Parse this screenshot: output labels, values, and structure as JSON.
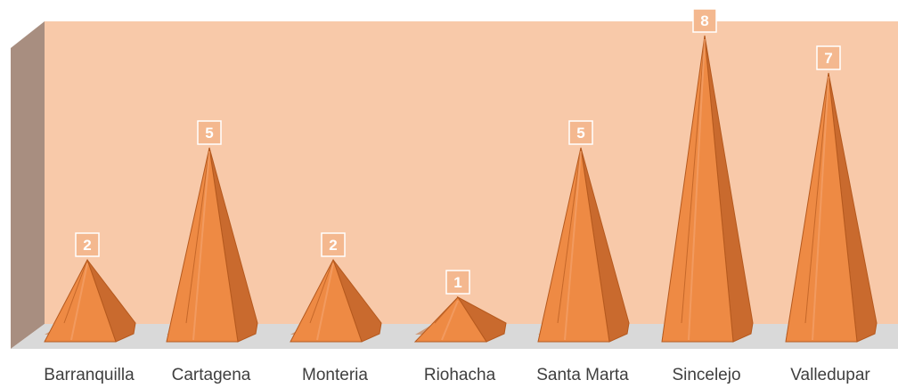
{
  "chart_data": {
    "type": "bar",
    "bar_shape": "pyramid",
    "three_d": true,
    "categories": [
      "Barranquilla",
      "Cartagena",
      "Monteria",
      "Riohacha",
      "Santa Marta",
      "Sincelejo",
      "Valledupar"
    ],
    "values": [
      2,
      5,
      2,
      1,
      5,
      8,
      7
    ],
    "title": "",
    "xlabel": "",
    "ylabel": "",
    "ylim": [
      0,
      8
    ],
    "grid": false,
    "legend": "none",
    "data_labels": true
  },
  "colors": {
    "plot_area": "#f8c9a9",
    "side_wall": "#a88e80",
    "floor": "#d9d9d9",
    "pyramid_front": "#ee8a44",
    "pyramid_right": "#c96a2e",
    "pyramid_edge": "#b5591e",
    "label_box": "#f4b88f",
    "label_text": "#ffffff",
    "tick_text": "#3f3f3f"
  }
}
